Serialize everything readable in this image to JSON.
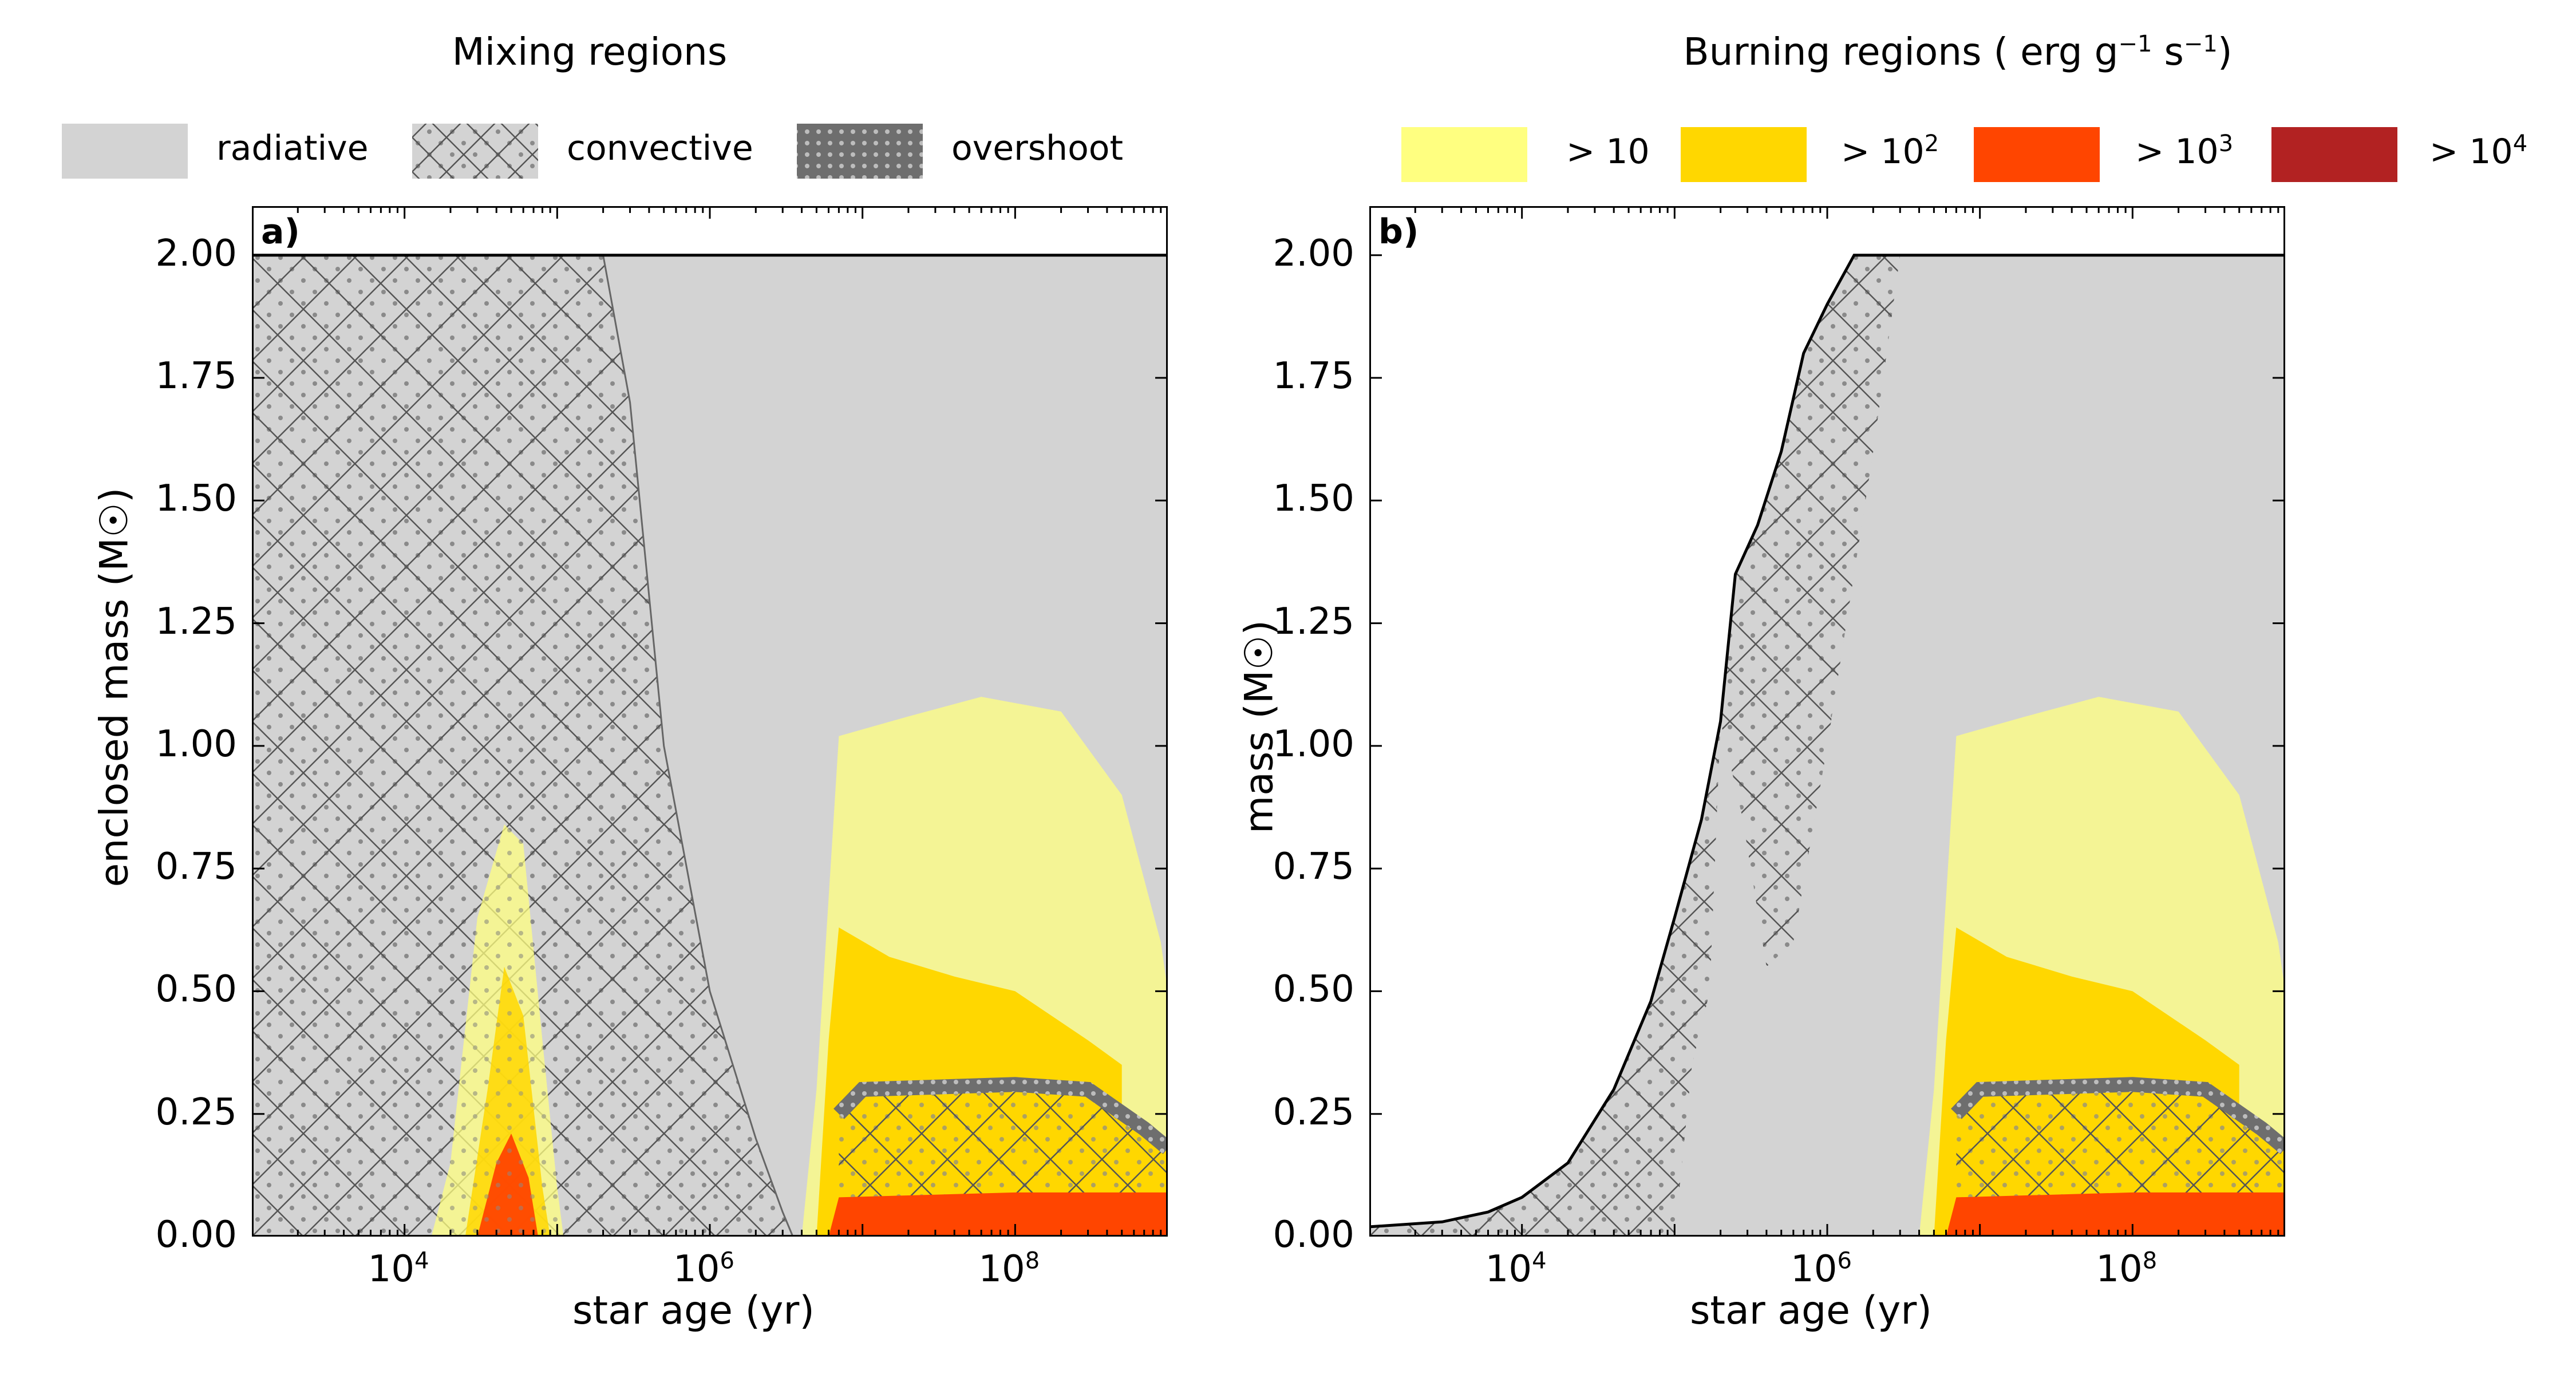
{
  "legends": {
    "mixing": {
      "title": "Mixing regions",
      "items": [
        {
          "key": "radiative",
          "label": "radiative"
        },
        {
          "key": "convective",
          "label": "convective"
        },
        {
          "key": "overshoot",
          "label": "overshoot"
        }
      ]
    },
    "burning": {
      "title_main": "Burning regions ( erg g",
      "title_exp1": "−1",
      "title_mid": " s",
      "title_exp2": "−1",
      "title_end": ")",
      "items": [
        {
          "key": "b1",
          "prefix": "> 10",
          "exp": ""
        },
        {
          "key": "b2",
          "prefix": "> 10",
          "exp": "2"
        },
        {
          "key": "b3",
          "prefix": "> 10",
          "exp": "3"
        },
        {
          "key": "b4",
          "prefix": "> 10",
          "exp": "4"
        }
      ]
    }
  },
  "colors": {
    "radiative": "#d3d3d3",
    "convective_dots": "#8a8a8a",
    "overshoot": "#6e6e6e",
    "b1": "#ffff80",
    "b2": "#ffd700",
    "b3": "#ff4500",
    "b4": "#b22222"
  },
  "chart_data": [
    {
      "type": "area",
      "panel_label": "a)",
      "xlabel": "star age (yr)",
      "ylabel": "enclosed mass  (M☉)",
      "xscale": "log",
      "xlim": [
        1000,
        1000000000
      ],
      "ylim": [
        0,
        2.1
      ],
      "xticks": [
        {
          "value": 10000,
          "base": "10",
          "exp": "4"
        },
        {
          "value": 1000000,
          "base": "10",
          "exp": "6"
        },
        {
          "value": 100000000,
          "base": "10",
          "exp": "8"
        }
      ],
      "yticks": [
        "0.00",
        "0.25",
        "0.50",
        "0.75",
        "1.00",
        "1.25",
        "1.50",
        "1.75",
        "2.00"
      ],
      "total_mass": 2.0,
      "convective_envelope_base": [
        [
          1000,
          2.0
        ],
        [
          15000,
          2.0
        ],
        [
          60000,
          2.0
        ],
        [
          200000,
          2.0
        ],
        [
          300000,
          1.7
        ],
        [
          500000,
          1.0
        ],
        [
          1000000,
          0.5
        ],
        [
          2000000,
          0.2
        ],
        [
          3000000,
          0.05
        ],
        [
          3500000,
          0.0
        ]
      ],
      "burning_pre_ms_b1": [
        [
          15000,
          0
        ],
        [
          20000,
          0.15
        ],
        [
          30000,
          0.65
        ],
        [
          45000,
          0.84
        ],
        [
          60000,
          0.8
        ],
        [
          80000,
          0.4
        ],
        [
          100000,
          0.1
        ],
        [
          110000,
          0
        ]
      ],
      "burning_pre_ms_b2": [
        [
          25000,
          0
        ],
        [
          35000,
          0.3
        ],
        [
          45000,
          0.55
        ],
        [
          60000,
          0.45
        ],
        [
          80000,
          0.1
        ],
        [
          90000,
          0
        ]
      ],
      "burning_pre_ms_b3": [
        [
          30000,
          0
        ],
        [
          40000,
          0.15
        ],
        [
          50000,
          0.21
        ],
        [
          65000,
          0.12
        ],
        [
          75000,
          0
        ]
      ],
      "burning_ms_b1": [
        [
          4000000,
          0
        ],
        [
          5000000,
          0.3
        ],
        [
          7000000,
          1.02
        ],
        [
          20000000,
          1.06
        ],
        [
          60000000,
          1.1
        ],
        [
          200000000,
          1.07
        ],
        [
          500000000,
          0.9
        ],
        [
          900000000,
          0.6
        ],
        [
          1000000000,
          0.5
        ]
      ],
      "burning_ms_b2": [
        [
          5000000,
          0
        ],
        [
          6000000,
          0.4
        ],
        [
          7000000,
          0.63
        ],
        [
          15000000,
          0.57
        ],
        [
          40000000,
          0.53
        ],
        [
          100000000,
          0.5
        ],
        [
          300000000,
          0.4
        ],
        [
          500000000,
          0.35
        ]
      ],
      "burning_ms_b3": [
        [
          6000000,
          0
        ],
        [
          7000000,
          0.08
        ],
        [
          100000000,
          0.09
        ],
        [
          300000000,
          0.09
        ],
        [
          1000000000,
          0.09
        ]
      ],
      "convective_core_top": [
        [
          7000000,
          0.25
        ],
        [
          10000000,
          0.3
        ],
        [
          100000000,
          0.31
        ],
        [
          300000000,
          0.3
        ],
        [
          700000000,
          0.22
        ],
        [
          1000000000,
          0.18
        ]
      ]
    },
    {
      "type": "area",
      "panel_label": "b)",
      "xlabel": "star age (yr)",
      "ylabel": "mass  (M☉)",
      "xscale": "log",
      "xlim": [
        1000,
        1000000000
      ],
      "ylim": [
        0,
        2.1
      ],
      "xticks": [
        {
          "value": 10000,
          "base": "10",
          "exp": "4"
        },
        {
          "value": 1000000,
          "base": "10",
          "exp": "6"
        },
        {
          "value": 100000000,
          "base": "10",
          "exp": "8"
        }
      ],
      "yticks": [
        "0.00",
        "0.25",
        "0.50",
        "0.75",
        "1.00",
        "1.25",
        "1.50",
        "1.75",
        "2.00"
      ],
      "stellar_mass": [
        [
          1000,
          0.02
        ],
        [
          3000,
          0.03
        ],
        [
          6000,
          0.05
        ],
        [
          10000,
          0.08
        ],
        [
          20000,
          0.15
        ],
        [
          40000,
          0.3
        ],
        [
          70000,
          0.48
        ],
        [
          100000,
          0.65
        ],
        [
          150000,
          0.85
        ],
        [
          200000,
          1.05
        ],
        [
          250000,
          1.35
        ],
        [
          350000,
          1.45
        ],
        [
          500000,
          1.6
        ],
        [
          700000,
          1.8
        ],
        [
          1000000,
          1.9
        ],
        [
          1500000,
          2.0
        ],
        [
          1000000000,
          2.0
        ]
      ],
      "convective_envelope_base": [
        [
          1000,
          0.0
        ],
        [
          100000,
          0.0
        ],
        [
          130000,
          0.35
        ],
        [
          170000,
          0.5
        ],
        [
          200000,
          1.05
        ],
        [
          280000,
          0.85
        ],
        [
          400000,
          0.55
        ],
        [
          600000,
          0.6
        ],
        [
          1000000,
          1.0
        ],
        [
          2000000,
          1.6
        ],
        [
          3000000,
          2.0
        ]
      ],
      "burning_ms_b1": [
        [
          4000000,
          0
        ],
        [
          5000000,
          0.3
        ],
        [
          7000000,
          1.02
        ],
        [
          20000000,
          1.06
        ],
        [
          60000000,
          1.1
        ],
        [
          200000000,
          1.07
        ],
        [
          500000000,
          0.9
        ],
        [
          900000000,
          0.6
        ],
        [
          1000000000,
          0.5
        ]
      ],
      "burning_ms_b2": [
        [
          5000000,
          0
        ],
        [
          6000000,
          0.4
        ],
        [
          7000000,
          0.63
        ],
        [
          15000000,
          0.57
        ],
        [
          40000000,
          0.53
        ],
        [
          100000000,
          0.5
        ],
        [
          300000000,
          0.4
        ],
        [
          500000000,
          0.35
        ]
      ],
      "burning_ms_b3": [
        [
          6000000,
          0
        ],
        [
          7000000,
          0.08
        ],
        [
          100000000,
          0.09
        ],
        [
          300000000,
          0.09
        ],
        [
          1000000000,
          0.09
        ]
      ],
      "convective_core_top": [
        [
          7000000,
          0.25
        ],
        [
          10000000,
          0.3
        ],
        [
          100000000,
          0.31
        ],
        [
          300000000,
          0.3
        ],
        [
          700000000,
          0.22
        ],
        [
          1000000000,
          0.18
        ]
      ]
    }
  ]
}
